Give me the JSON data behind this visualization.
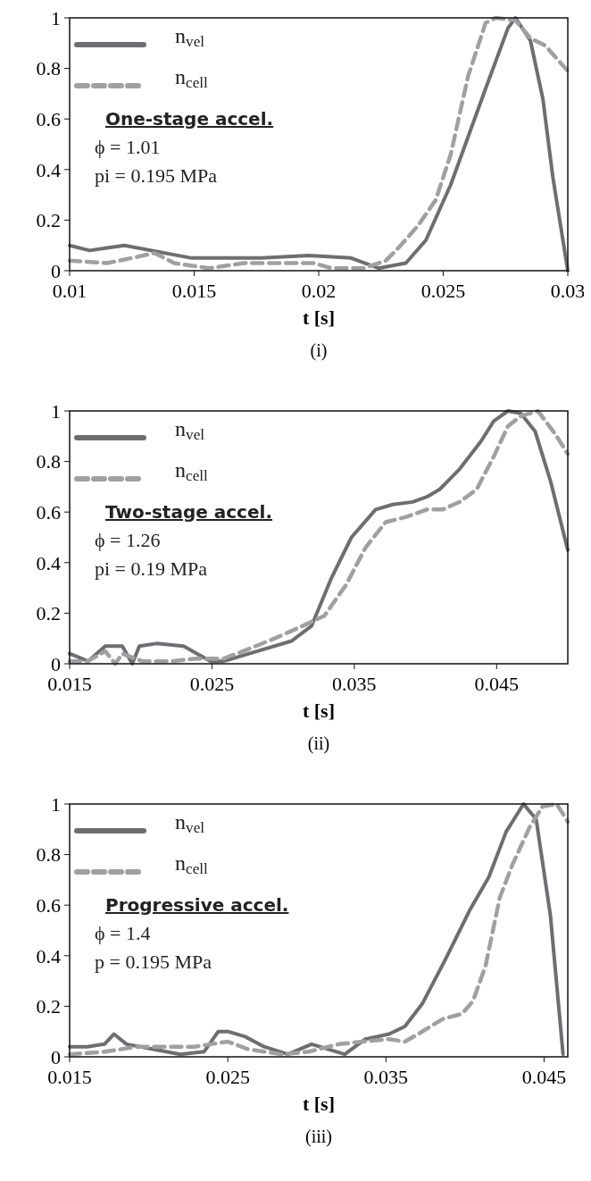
{
  "chart_data": [
    {
      "type": "line",
      "xlabel": "t [s]",
      "xlim": [
        0.01,
        0.03
      ],
      "xticks": [
        0.01,
        0.015,
        0.02,
        0.025,
        0.03
      ],
      "ylim": [
        0,
        1
      ],
      "yticks": [
        0,
        0.2,
        0.4,
        0.6,
        0.8,
        1
      ],
      "legend": "top left",
      "grid": false,
      "marker": "none",
      "annotations": [
        "One-stage accel.",
        "ϕ = 1.01",
        "pi = 0.195 MPa",
        "(i)"
      ],
      "series": [
        {
          "name": "n$_{vel}$",
          "color": "#6d6e71",
          "line_style": "solid",
          "x": [
            0.01,
            0.0108,
            0.0115,
            0.0122,
            0.0149,
            0.0177,
            0.0196,
            0.0213,
            0.0224,
            0.0235,
            0.0243,
            0.0253,
            0.0267,
            0.0276,
            0.0279,
            0.0285,
            0.029,
            0.0294,
            0.03
          ],
          "values": [
            0.1,
            0.08,
            0.09,
            0.1,
            0.05,
            0.05,
            0.06,
            0.05,
            0.01,
            0.03,
            0.12,
            0.34,
            0.72,
            0.96,
            1.0,
            0.91,
            0.68,
            0.37,
            0
          ]
        },
        {
          "name": "n$_{cell}$",
          "color": "#a0a0a3",
          "line_style": "dashed",
          "x": [
            0.01,
            0.0115,
            0.0125,
            0.0134,
            0.0142,
            0.0156,
            0.017,
            0.0184,
            0.0198,
            0.0205,
            0.0218,
            0.0227,
            0.0232,
            0.024,
            0.0247,
            0.0253,
            0.026,
            0.0267,
            0.0271,
            0.0279,
            0.0285,
            0.0291,
            0.03
          ],
          "values": [
            0.04,
            0.03,
            0.05,
            0.07,
            0.03,
            0.01,
            0.03,
            0.03,
            0.03,
            0.01,
            0.01,
            0.04,
            0.09,
            0.18,
            0.28,
            0.46,
            0.77,
            0.98,
            1.0,
            0.99,
            0.92,
            0.89,
            0.79
          ]
        }
      ]
    },
    {
      "type": "line",
      "xlabel": "t [s]",
      "xlim": [
        0.015,
        0.05
      ],
      "xticks": [
        0.015,
        0.025,
        0.035,
        0.045
      ],
      "ylim": [
        0,
        1
      ],
      "yticks": [
        0,
        0.2,
        0.4,
        0.6,
        0.8,
        1
      ],
      "legend": "top left",
      "grid": false,
      "marker": "none",
      "annotations": [
        "Two-stage accel.",
        "ϕ = 1.26",
        "pi = 0.19 MPa",
        "(ii)"
      ],
      "series": [
        {
          "name": "n$_{vel}$",
          "color": "#6d6e71",
          "line_style": "solid",
          "x": [
            0.015,
            0.0163,
            0.0175,
            0.0187,
            0.0194,
            0.0199,
            0.0211,
            0.023,
            0.0249,
            0.0258,
            0.0282,
            0.0306,
            0.032,
            0.0334,
            0.0348,
            0.0365,
            0.0377,
            0.0391,
            0.0401,
            0.041,
            0.0424,
            0.0439,
            0.0448,
            0.0458,
            0.0467,
            0.0477,
            0.0488,
            0.05
          ],
          "values": [
            0.04,
            0.01,
            0.07,
            0.07,
            0,
            0.07,
            0.08,
            0.07,
            0.01,
            0.01,
            0.05,
            0.09,
            0.15,
            0.34,
            0.5,
            0.61,
            0.63,
            0.64,
            0.66,
            0.69,
            0.77,
            0.88,
            0.96,
            1.0,
            0.99,
            0.92,
            0.72,
            0.45
          ]
        },
        {
          "name": "n$_{cell}$",
          "color": "#a0a0a3",
          "line_style": "dashed",
          "x": [
            0.015,
            0.0163,
            0.0175,
            0.0182,
            0.0187,
            0.0201,
            0.0222,
            0.0239,
            0.0258,
            0.0272,
            0.0294,
            0.031,
            0.0329,
            0.0344,
            0.0358,
            0.0372,
            0.0386,
            0.0401,
            0.0412,
            0.0424,
            0.0436,
            0.0448,
            0.0458,
            0.0467,
            0.0479,
            0.0491,
            0.05
          ],
          "values": [
            0.01,
            0.01,
            0.05,
            0,
            0.04,
            0.01,
            0.01,
            0.02,
            0.02,
            0.05,
            0.1,
            0.14,
            0.19,
            0.31,
            0.46,
            0.56,
            0.58,
            0.61,
            0.61,
            0.64,
            0.69,
            0.82,
            0.94,
            0.98,
            1.0,
            0.91,
            0.83
          ]
        }
      ]
    },
    {
      "type": "line",
      "xlabel": "t [s]",
      "xlim": [
        0.015,
        0.0465
      ],
      "xticks": [
        0.015,
        0.025,
        0.035,
        0.045
      ],
      "ylim": [
        0,
        1
      ],
      "yticks": [
        0,
        0.2,
        0.4,
        0.6,
        0.8,
        1
      ],
      "legend": "top left",
      "grid": false,
      "marker": "none",
      "annotations": [
        "Progressive accel.",
        "ϕ = 1.4",
        "p = 0.195 MPa",
        "(iii)"
      ],
      "series": [
        {
          "name": "n$_{vel}$",
          "color": "#6d6e71",
          "line_style": "solid",
          "x": [
            0.015,
            0.0161,
            0.0172,
            0.0178,
            0.0186,
            0.0203,
            0.022,
            0.0235,
            0.0244,
            0.025,
            0.0261,
            0.0273,
            0.0288,
            0.0303,
            0.0324,
            0.0337,
            0.0352,
            0.0362,
            0.0373,
            0.0388,
            0.0403,
            0.0415,
            0.0426,
            0.0437,
            0.0445,
            0.0454,
            0.0462
          ],
          "values": [
            0.04,
            0.04,
            0.05,
            0.09,
            0.05,
            0.03,
            0.01,
            0.02,
            0.1,
            0.1,
            0.08,
            0.04,
            0.01,
            0.05,
            0.01,
            0.07,
            0.09,
            0.12,
            0.21,
            0.39,
            0.58,
            0.71,
            0.89,
            1.0,
            0.94,
            0.56,
            0.01
          ]
        },
        {
          "name": "n$_{cell}$",
          "color": "#a0a0a3",
          "line_style": "dashed",
          "x": [
            0.015,
            0.0172,
            0.0193,
            0.0214,
            0.0229,
            0.0239,
            0.025,
            0.0263,
            0.0284,
            0.0301,
            0.032,
            0.0335,
            0.0352,
            0.0362,
            0.0373,
            0.0386,
            0.0398,
            0.0405,
            0.0413,
            0.0422,
            0.043,
            0.0441,
            0.0449,
            0.0458,
            0.0465
          ],
          "values": [
            0.01,
            0.02,
            0.04,
            0.04,
            0.04,
            0.05,
            0.06,
            0.03,
            0.01,
            0.02,
            0.05,
            0.06,
            0.07,
            0.06,
            0.1,
            0.15,
            0.17,
            0.22,
            0.36,
            0.63,
            0.76,
            0.91,
            0.99,
            1.0,
            0.93
          ]
        }
      ]
    }
  ]
}
